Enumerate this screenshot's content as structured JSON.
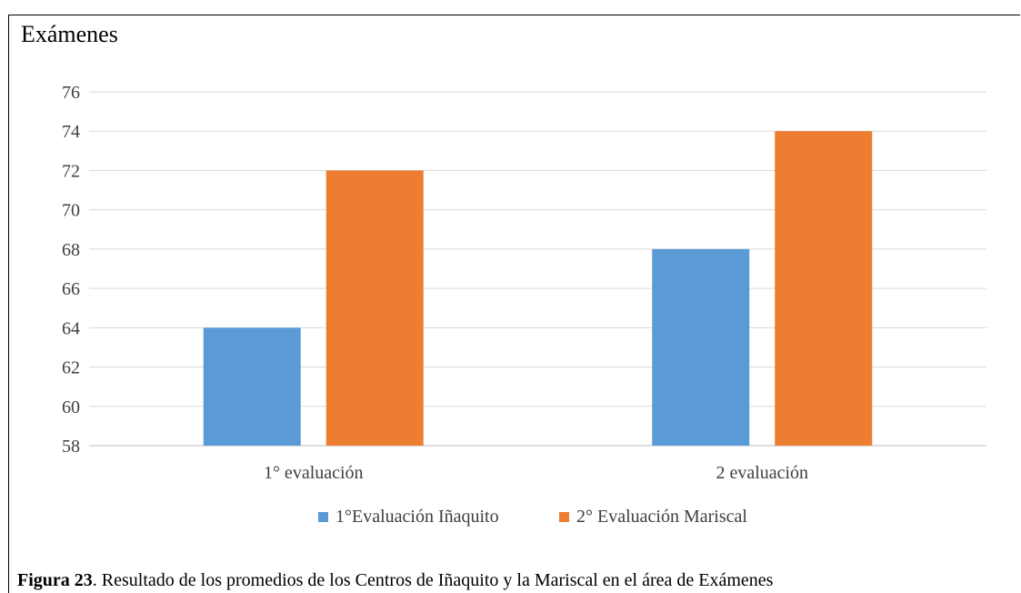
{
  "chart_data": {
    "type": "bar",
    "title": "Exámenes",
    "categories": [
      "1° evaluación",
      "2 evaluación"
    ],
    "series": [
      {
        "name": "1°Evaluación Iñaquito",
        "values": [
          64,
          68
        ],
        "color": "#5B9BD5"
      },
      {
        "name": "2° Evaluación Mariscal",
        "values": [
          72,
          74
        ],
        "color": "#ED7D31"
      }
    ],
    "ylim": [
      58,
      76
    ],
    "yticks": [
      58,
      60,
      62,
      64,
      66,
      68,
      70,
      72,
      74,
      76
    ],
    "grid": true,
    "legend_position": "bottom"
  },
  "caption": {
    "label": "Figura 23",
    "text": ". Resultado de los promedios de los Centros de Iñaquito y la Mariscal en el área de Exámenes"
  }
}
